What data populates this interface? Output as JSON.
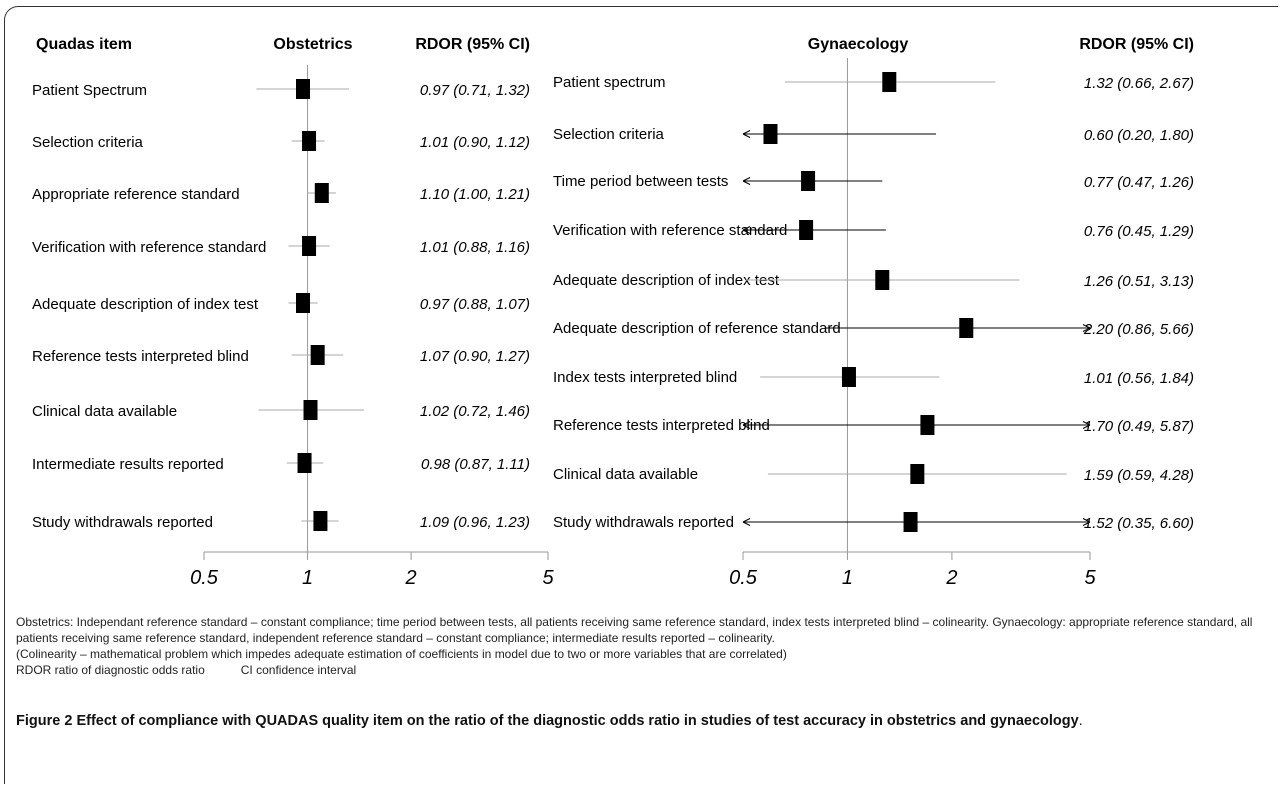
{
  "panels": [
    {
      "title": "Obstetrics",
      "item_header": "Quadas item",
      "ci_header": "RDOR (95% CI)",
      "ticks": [
        0.5,
        1,
        2,
        5
      ],
      "tick_labels": [
        "0.5",
        "1",
        "2",
        "5"
      ]
    },
    {
      "title": "Gynaecology",
      "ci_header": "RDOR (95% CI)",
      "ticks": [
        0.5,
        1,
        2,
        5
      ],
      "tick_labels": [
        "0.5",
        "1",
        "2",
        "5"
      ]
    }
  ],
  "chart_data": [
    {
      "type": "forest",
      "title": "Obstetrics",
      "scale": "log",
      "xlim": [
        0.5,
        5
      ],
      "reference_line": 1,
      "items": [
        {
          "label": "Patient Spectrum",
          "estimate": 0.97,
          "lower": 0.71,
          "upper": 1.32,
          "ci_text": "0.97 (0.71, 1.32)"
        },
        {
          "label": "Selection criteria",
          "estimate": 1.01,
          "lower": 0.9,
          "upper": 1.12,
          "ci_text": "1.01 (0.90, 1.12)"
        },
        {
          "label": "Appropriate reference standard",
          "estimate": 1.1,
          "lower": 1.0,
          "upper": 1.21,
          "ci_text": "1.10 (1.00, 1.21)"
        },
        {
          "label": "Verification with reference standard",
          "estimate": 1.01,
          "lower": 0.88,
          "upper": 1.16,
          "ci_text": "1.01 (0.88, 1.16)"
        },
        {
          "label": "Adequate description of index test",
          "estimate": 0.97,
          "lower": 0.88,
          "upper": 1.07,
          "ci_text": "0.97 (0.88, 1.07)"
        },
        {
          "label": "Reference tests interpreted blind",
          "estimate": 1.07,
          "lower": 0.9,
          "upper": 1.27,
          "ci_text": "1.07 (0.90, 1.27)"
        },
        {
          "label": "Clinical data available",
          "estimate": 1.02,
          "lower": 0.72,
          "upper": 1.46,
          "ci_text": "1.02 (0.72, 1.46)"
        },
        {
          "label": "Intermediate results reported",
          "estimate": 0.98,
          "lower": 0.87,
          "upper": 1.11,
          "ci_text": "0.98 (0.87, 1.11)"
        },
        {
          "label": "Study withdrawals reported",
          "estimate": 1.09,
          "lower": 0.96,
          "upper": 1.23,
          "ci_text": "1.09 (0.96, 1.23)"
        }
      ]
    },
    {
      "type": "forest",
      "title": "Gynaecology",
      "scale": "log",
      "xlim": [
        0.5,
        5
      ],
      "reference_line": 1,
      "items": [
        {
          "label": "Patient spectrum",
          "estimate": 1.32,
          "lower": 0.66,
          "upper": 2.67,
          "ci_text": "1.32 (0.66, 2.67)"
        },
        {
          "label": "Selection criteria",
          "estimate": 0.6,
          "lower": 0.2,
          "upper": 1.8,
          "ci_text": "0.60 (0.20, 1.80)"
        },
        {
          "label": "Time period between tests",
          "estimate": 0.77,
          "lower": 0.47,
          "upper": 1.26,
          "ci_text": "0.77 (0.47, 1.26)"
        },
        {
          "label": "Verification with reference standard",
          "estimate": 0.76,
          "lower": 0.45,
          "upper": 1.29,
          "ci_text": "0.76 (0.45, 1.29)"
        },
        {
          "label": "Adequate description of index test",
          "estimate": 1.26,
          "lower": 0.51,
          "upper": 3.13,
          "ci_text": "1.26 (0.51, 3.13)"
        },
        {
          "label": "Adequate description of reference standard",
          "estimate": 2.2,
          "lower": 0.86,
          "upper": 5.66,
          "ci_text": "2.20 (0.86, 5.66)"
        },
        {
          "label": "Index tests interpreted blind",
          "estimate": 1.01,
          "lower": 0.56,
          "upper": 1.84,
          "ci_text": "1.01 (0.56, 1.84)"
        },
        {
          "label": "Reference tests interpreted blind",
          "estimate": 1.7,
          "lower": 0.49,
          "upper": 5.87,
          "ci_text": "1.70 (0.49, 5.87)"
        },
        {
          "label": "Clinical data available",
          "estimate": 1.59,
          "lower": 0.59,
          "upper": 4.28,
          "ci_text": "1.59 (0.59, 4.28)"
        },
        {
          "label": "Study withdrawals reported",
          "estimate": 1.52,
          "lower": 0.35,
          "upper": 6.6,
          "ci_text": "1.52 (0.35, 6.60)"
        }
      ]
    }
  ],
  "notes": {
    "line1": "Obstetrics: Independant reference standard – constant compliance; time period between tests, all patients receiving same reference standard, index tests interpreted blind – colinearity. Gynaecology: appropriate reference standard, all patients receiving same reference standard, independent reference standard – constant compliance; intermediate results reported – colinearity.",
    "line2": "(Colinearity – mathematical problem which impedes adequate estimation of coefficients in model due to two or more variables that are correlated)",
    "abbr1": "RDOR ratio of diagnostic odds ratio",
    "abbr2": "CI confidence interval"
  },
  "caption": {
    "label": "Figure 2",
    "text": "Effect of compliance with QUADAS quality item on the ratio of the diagnostic odds ratio in studies of test accuracy in obstetrics and gynaecology",
    "end": "."
  }
}
